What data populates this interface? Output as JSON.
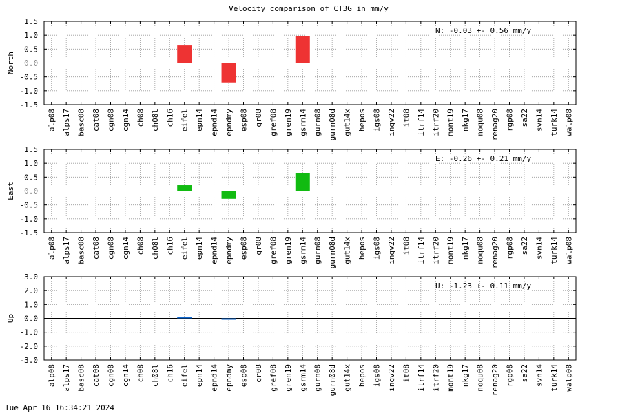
{
  "title": "Velocity comparison of CT3G in mm/y",
  "timestamp": "Tue Apr 16 16:34:21 2024",
  "chart_data": [
    {
      "type": "bar",
      "ylabel": "North",
      "annotation": "N:  -0.03 +-  0.56 mm/y",
      "ylim": [
        -1.5,
        1.5
      ],
      "yticks": [
        -1.5,
        -1.0,
        -0.5,
        0.0,
        0.5,
        1.0,
        1.5
      ],
      "ytick_labels": [
        "-1.5",
        "-1.0",
        "-0.5",
        "0.0",
        "0.5",
        "1.0",
        "1.5"
      ],
      "color": "#ee3333",
      "categories": [
        "alp08",
        "alps17",
        "basc08",
        "cat08",
        "cgn08",
        "cgn14",
        "ch08",
        "ch08l",
        "ch16",
        "eifel",
        "epn14",
        "epnd14",
        "epndmy",
        "esp08",
        "gr08",
        "gref08",
        "gren19",
        "gsrm14",
        "gurn08",
        "gurn08d",
        "gut14x",
        "hepos",
        "igs08",
        "ingv22",
        "it08",
        "itrf14",
        "itrf20",
        "mont19",
        "nkg17",
        "noqu08",
        "renag20",
        "rgp08",
        "sa22",
        "svn14",
        "turk14",
        "walp08"
      ],
      "values": [
        null,
        null,
        null,
        null,
        null,
        null,
        null,
        null,
        null,
        0.63,
        null,
        null,
        -0.7,
        null,
        null,
        null,
        null,
        0.96,
        null,
        null,
        null,
        null,
        null,
        null,
        null,
        null,
        null,
        null,
        null,
        null,
        null,
        null,
        null,
        null,
        null,
        null
      ]
    },
    {
      "type": "bar",
      "ylabel": "East",
      "annotation": "E:  -0.26 +-  0.21 mm/y",
      "ylim": [
        -1.5,
        1.5
      ],
      "yticks": [
        -1.5,
        -1.0,
        -0.5,
        0.0,
        0.5,
        1.0,
        1.5
      ],
      "ytick_labels": [
        "-1.5",
        "-1.0",
        "-0.5",
        "0.0",
        "0.5",
        "1.0",
        "1.5"
      ],
      "color": "#11bb11",
      "categories": [
        "alp08",
        "alps17",
        "basc08",
        "cat08",
        "cgn08",
        "cgn14",
        "ch08",
        "ch08l",
        "ch16",
        "eifel",
        "epn14",
        "epnd14",
        "epndmy",
        "esp08",
        "gr08",
        "gref08",
        "gren19",
        "gsrm14",
        "gurn08",
        "gurn08d",
        "gut14x",
        "hepos",
        "igs08",
        "ingv22",
        "it08",
        "itrf14",
        "itrf20",
        "mont19",
        "nkg17",
        "noqu08",
        "renag20",
        "rgp08",
        "sa22",
        "svn14",
        "turk14",
        "walp08"
      ],
      "values": [
        null,
        null,
        null,
        null,
        null,
        null,
        null,
        null,
        null,
        0.21,
        null,
        null,
        -0.28,
        null,
        null,
        null,
        null,
        0.65,
        null,
        null,
        null,
        null,
        null,
        null,
        null,
        null,
        null,
        null,
        null,
        null,
        null,
        null,
        null,
        null,
        null,
        null
      ]
    },
    {
      "type": "bar",
      "ylabel": "Up",
      "annotation": "U:  -1.23 +-  0.11 mm/y",
      "ylim": [
        -3.0,
        3.0
      ],
      "yticks": [
        -3.0,
        -2.0,
        -1.0,
        0.0,
        1.0,
        2.0,
        3.0
      ],
      "ytick_labels": [
        "-3.0",
        "-2.0",
        "-1.0",
        "0.0",
        "1.0",
        "2.0",
        "3.0"
      ],
      "color": "#1166cc",
      "categories": [
        "alp08",
        "alps17",
        "basc08",
        "cat08",
        "cgn08",
        "cgn14",
        "ch08",
        "ch08l",
        "ch16",
        "eifel",
        "epn14",
        "epnd14",
        "epndmy",
        "esp08",
        "gr08",
        "gref08",
        "gren19",
        "gsrm14",
        "gurn08",
        "gurn08d",
        "gut14x",
        "hepos",
        "igs08",
        "ingv22",
        "it08",
        "itrf14",
        "itrf20",
        "mont19",
        "nkg17",
        "noqu08",
        "renag20",
        "rgp08",
        "sa22",
        "svn14",
        "turk14",
        "walp08"
      ],
      "values": [
        null,
        null,
        null,
        null,
        null,
        null,
        null,
        null,
        null,
        0.08,
        null,
        null,
        -0.1,
        null,
        null,
        null,
        null,
        null,
        null,
        null,
        null,
        null,
        null,
        null,
        null,
        null,
        null,
        null,
        null,
        null,
        null,
        null,
        null,
        null,
        null,
        null
      ]
    }
  ]
}
